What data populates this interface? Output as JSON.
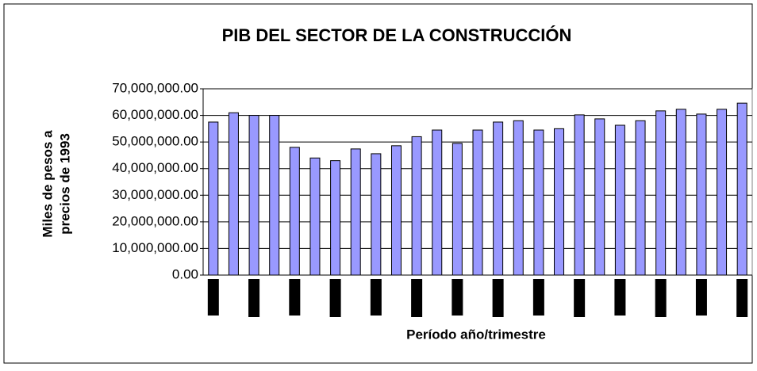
{
  "chart_data": {
    "type": "bar",
    "title": "PIB DEL SECTOR DE LA CONSTRUCCIÓN",
    "y_label": [
      "Miles de pesos a",
      "precios de 1993"
    ],
    "x_label": "Período año/trimestre",
    "categories": [
      null,
      null,
      null,
      null,
      null,
      null,
      null,
      null,
      null,
      null,
      null,
      null,
      null,
      null,
      null,
      null,
      null,
      null,
      null,
      null,
      null,
      null,
      null,
      null,
      null,
      null,
      null
    ],
    "values": [
      57500000,
      61000000,
      60000000,
      60000000,
      48000000,
      44000000,
      43000000,
      47400000,
      45600000,
      48600000,
      52000000,
      54500000,
      49500000,
      54500000,
      57500000,
      58000000,
      54500000,
      55000000,
      60200000,
      58700000,
      56300000,
      58000000,
      61700000,
      62300000,
      60500000,
      62300000,
      64600000
    ],
    "color": "#9999ff",
    "ylim": [
      0,
      70000000
    ],
    "yticks": [
      {
        "value": 0,
        "label": "0.00"
      },
      {
        "value": 10000000,
        "label": "10,000,000.00"
      },
      {
        "value": 20000000,
        "label": "20,000,000.00"
      },
      {
        "value": 30000000,
        "label": "30,000,000.00"
      },
      {
        "value": 40000000,
        "label": "40,000,000.00"
      },
      {
        "value": 50000000,
        "label": "50,000,000.00"
      },
      {
        "value": 60000000,
        "label": "60,000,000.00"
      },
      {
        "value": 70000000,
        "label": "70,000,000.00"
      }
    ],
    "grid": true
  }
}
